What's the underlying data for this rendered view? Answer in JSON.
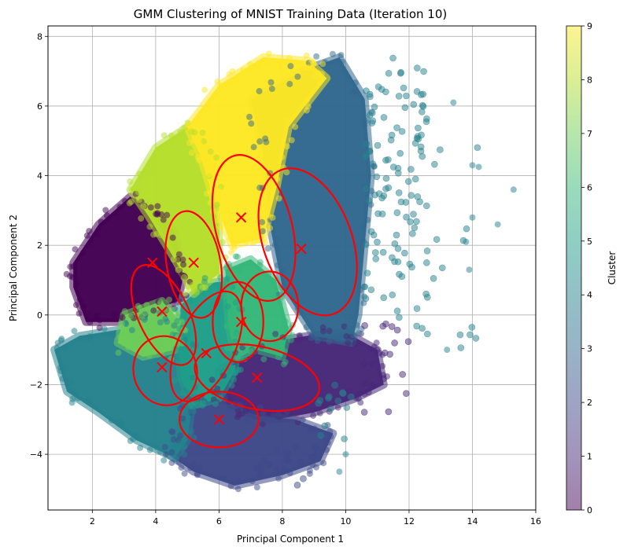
{
  "chart_data": {
    "type": "scatter",
    "title": "GMM Clustering of MNIST Training Data (Iteration 10)",
    "xlabel": "Principal Component 1",
    "ylabel": "Principal Component 2",
    "xlim": [
      0.6,
      16.0
    ],
    "ylim": [
      -5.6,
      8.3
    ],
    "xticks": [
      2,
      4,
      6,
      8,
      10,
      12,
      14,
      16
    ],
    "yticks": [
      -4,
      -2,
      0,
      2,
      4,
      6,
      8
    ],
    "grid": true,
    "colorbar": {
      "label": "Cluster",
      "range": [
        0,
        9
      ],
      "ticks": [
        0,
        1,
        2,
        3,
        4,
        5,
        6,
        7,
        8,
        9
      ],
      "colormap": "viridis"
    },
    "cluster_colors": [
      "#440154",
      "#482878",
      "#3e4989",
      "#31688e",
      "#26828e",
      "#1f9e89",
      "#35b779",
      "#6ece58",
      "#b5de2b",
      "#fde725"
    ],
    "point_alpha": 0.5,
    "centroid_marker": "x",
    "centroid_color": "#ff0000",
    "ellipse_color": "#ff0000",
    "clusters": [
      {
        "cluster": 0,
        "centroid": [
          3.9,
          1.5
        ],
        "region": [
          [
            1.4,
            1.5
          ],
          [
            2.2,
            2.6
          ],
          [
            3.2,
            3.4
          ],
          [
            4.1,
            3.0
          ],
          [
            4.6,
            2.4
          ],
          [
            4.9,
            1.2
          ],
          [
            4.7,
            0.4
          ],
          [
            3.8,
            0.1
          ],
          [
            2.8,
            -0.2
          ],
          [
            1.8,
            -0.2
          ],
          [
            1.4,
            0.8
          ]
        ]
      },
      {
        "cluster": 1,
        "centroid": [
          7.2,
          -1.8
        ],
        "region": [
          [
            6.0,
            -1.6
          ],
          [
            7.4,
            -0.8
          ],
          [
            8.8,
            -0.6
          ],
          [
            10.0,
            -0.5
          ],
          [
            11.0,
            -1.0
          ],
          [
            11.2,
            -2.0
          ],
          [
            10.3,
            -2.4
          ],
          [
            9.0,
            -2.8
          ],
          [
            7.8,
            -3.0
          ],
          [
            6.8,
            -2.8
          ],
          [
            6.0,
            -2.3
          ]
        ]
      },
      {
        "cluster": 2,
        "centroid": [
          6.0,
          -3.0
        ],
        "region": [
          [
            4.6,
            -3.6
          ],
          [
            5.0,
            -2.6
          ],
          [
            6.0,
            -2.4
          ],
          [
            7.2,
            -2.9
          ],
          [
            8.4,
            -3.0
          ],
          [
            9.6,
            -3.4
          ],
          [
            9.2,
            -4.2
          ],
          [
            8.0,
            -4.6
          ],
          [
            6.5,
            -4.9
          ],
          [
            5.2,
            -4.5
          ],
          [
            4.4,
            -4.0
          ]
        ]
      },
      {
        "cluster": 3,
        "centroid": [
          8.6,
          1.9
        ],
        "region": [
          [
            7.0,
            6.2
          ],
          [
            8.6,
            7.0
          ],
          [
            9.8,
            7.4
          ],
          [
            10.6,
            6.2
          ],
          [
            10.8,
            4.0
          ],
          [
            10.6,
            2.0
          ],
          [
            10.4,
            0.0
          ],
          [
            10.2,
            -0.8
          ],
          [
            9.0,
            -0.6
          ],
          [
            8.0,
            0.8
          ],
          [
            7.6,
            2.6
          ],
          [
            7.4,
            4.6
          ]
        ]
      },
      {
        "cluster": 4,
        "centroid": [
          4.2,
          -1.5
        ],
        "region": [
          [
            0.8,
            -1.0
          ],
          [
            1.6,
            -0.6
          ],
          [
            3.0,
            -0.4
          ],
          [
            4.2,
            0.0
          ],
          [
            5.0,
            -0.6
          ],
          [
            5.2,
            -2.2
          ],
          [
            5.0,
            -3.6
          ],
          [
            4.6,
            -4.1
          ],
          [
            3.4,
            -3.6
          ],
          [
            2.2,
            -2.8
          ],
          [
            1.2,
            -2.2
          ]
        ]
      },
      {
        "cluster": 5,
        "centroid": [
          5.6,
          -1.1
        ],
        "region": [
          [
            4.8,
            0.3
          ],
          [
            5.6,
            0.9
          ],
          [
            6.4,
            1.0
          ],
          [
            6.6,
            -0.6
          ],
          [
            6.5,
            -1.6
          ],
          [
            6.0,
            -2.4
          ],
          [
            5.2,
            -2.6
          ],
          [
            4.8,
            -1.8
          ],
          [
            4.7,
            -0.6
          ]
        ]
      },
      {
        "cluster": 6,
        "centroid": [
          6.7,
          -0.2
        ],
        "region": [
          [
            6.2,
            1.3
          ],
          [
            7.0,
            1.6
          ],
          [
            7.8,
            1.0
          ],
          [
            8.2,
            -0.4
          ],
          [
            8.0,
            -1.2
          ],
          [
            7.2,
            -1.0
          ],
          [
            6.5,
            -1.2
          ],
          [
            6.3,
            -0.3
          ]
        ]
      },
      {
        "cluster": 7,
        "centroid": [
          4.2,
          0.1
        ],
        "region": [
          [
            3.0,
            0.0
          ],
          [
            4.2,
            0.4
          ],
          [
            4.8,
            -0.2
          ],
          [
            4.6,
            -1.0
          ],
          [
            3.6,
            -1.2
          ],
          [
            2.8,
            -0.8
          ]
        ]
      },
      {
        "cluster": 8,
        "centroid": [
          5.2,
          1.5
        ],
        "region": [
          [
            3.2,
            3.6
          ],
          [
            4.0,
            4.8
          ],
          [
            5.0,
            5.4
          ],
          [
            5.8,
            4.6
          ],
          [
            6.0,
            2.4
          ],
          [
            6.0,
            1.2
          ],
          [
            5.2,
            0.6
          ],
          [
            4.6,
            1.6
          ],
          [
            3.8,
            2.8
          ]
        ]
      },
      {
        "cluster": 9,
        "centroid": [
          6.7,
          2.8
        ],
        "region": [
          [
            5.0,
            5.4
          ],
          [
            6.0,
            6.6
          ],
          [
            7.4,
            7.4
          ],
          [
            8.8,
            7.3
          ],
          [
            9.4,
            6.8
          ],
          [
            8.2,
            5.4
          ],
          [
            7.8,
            3.6
          ],
          [
            7.4,
            2.2
          ],
          [
            6.4,
            2.0
          ],
          [
            5.8,
            3.4
          ],
          [
            5.4,
            4.6
          ]
        ]
      }
    ],
    "ellipses": [
      {
        "center": [
          7.1,
          2.5
        ],
        "rx": 1.2,
        "ry": 2.15,
        "angle": -15
      },
      {
        "center": [
          8.8,
          2.1
        ],
        "rx": 1.4,
        "ry": 2.2,
        "angle": -20
      },
      {
        "center": [
          5.2,
          1.45
        ],
        "rx": 0.85,
        "ry": 1.55,
        "angle": -10
      },
      {
        "center": [
          4.25,
          0.0
        ],
        "rx": 0.8,
        "ry": 1.55,
        "angle": -25
      },
      {
        "center": [
          4.3,
          -1.6
        ],
        "rx": 1.0,
        "ry": 1.0,
        "angle": -15
      },
      {
        "center": [
          5.6,
          -0.9
        ],
        "rx": 0.9,
        "ry": 1.7,
        "angle": 25
      },
      {
        "center": [
          6.6,
          -0.2
        ],
        "rx": 0.8,
        "ry": 1.15,
        "angle": 0
      },
      {
        "center": [
          7.6,
          0.25
        ],
        "rx": 0.9,
        "ry": 1.0,
        "angle": 0
      },
      {
        "center": [
          7.2,
          -1.8
        ],
        "rx": 2.0,
        "ry": 0.9,
        "angle": 12
      },
      {
        "center": [
          6.0,
          -3.0
        ],
        "rx": 1.25,
        "ry": 0.8,
        "angle": 0
      }
    ]
  }
}
